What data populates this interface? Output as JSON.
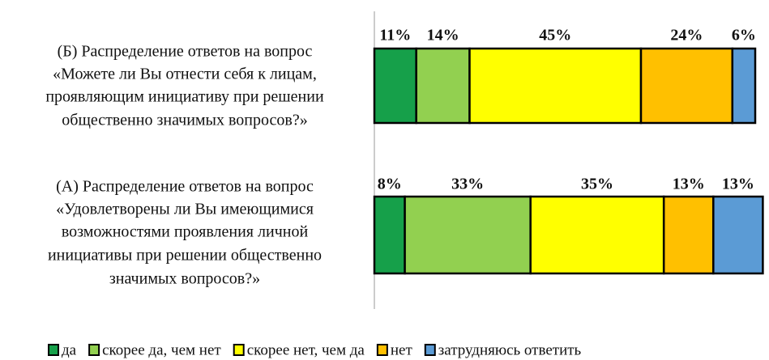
{
  "chart_data": {
    "type": "stacked-bar-horizontal",
    "categories": [
      [
        "(Б) Распределение ответов на вопрос",
        "«Можете ли Вы отнести себя к лицам,",
        "проявляющим инициативу при решении",
        "общественно значимых вопросов?»"
      ],
      [
        "(А) Распределение ответов на вопрос",
        "«Удовлетворены ли Вы имеющимися",
        "возможностями проявления личной",
        "инициативы при решении общественно",
        "значимых вопросов?»"
      ]
    ],
    "series": [
      {
        "name": "да",
        "color": "#16a04a",
        "values": [
          11,
          8
        ],
        "value_labels": [
          "11%",
          "8%"
        ]
      },
      {
        "name": "скорее да, чем нет",
        "color": "#92d050",
        "values": [
          14,
          33
        ],
        "value_labels": [
          "14%",
          "33%"
        ]
      },
      {
        "name": "скорее нет, чем да",
        "color": "#ffff00",
        "values": [
          45,
          35
        ],
        "value_labels": [
          "45%",
          "35%"
        ]
      },
      {
        "name": "нет",
        "color": "#ffc000",
        "values": [
          24,
          13
        ],
        "value_labels": [
          "24%",
          "13%"
        ]
      },
      {
        "name": "затрудняюсь ответить",
        "color": "#5b9bd5",
        "values": [
          6,
          13
        ],
        "value_labels": [
          "6%",
          "13%"
        ]
      }
    ],
    "xlim": [
      0,
      102
    ]
  }
}
